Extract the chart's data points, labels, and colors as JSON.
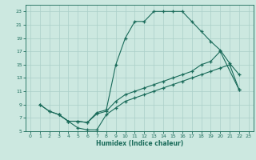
{
  "xlabel": "Humidex (Indice chaleur)",
  "bg_color": "#cce8e0",
  "grid_color": "#aacfc8",
  "line_color": "#1a6b5a",
  "xlim": [
    -0.5,
    23.5
  ],
  "ylim": [
    5,
    24
  ],
  "xticks": [
    0,
    1,
    2,
    3,
    4,
    5,
    6,
    7,
    8,
    9,
    10,
    11,
    12,
    13,
    14,
    15,
    16,
    17,
    18,
    19,
    20,
    21,
    22,
    23
  ],
  "yticks": [
    5,
    7,
    9,
    11,
    13,
    15,
    17,
    19,
    21,
    23
  ],
  "line1_x": [
    1,
    2,
    3,
    4,
    5,
    6,
    7,
    8,
    9,
    10,
    11,
    12,
    13,
    14,
    15,
    16,
    17,
    18,
    19,
    20,
    21,
    22
  ],
  "line1_y": [
    9,
    8,
    7.5,
    6.5,
    6.5,
    6.3,
    7.8,
    8.2,
    15,
    19,
    21.5,
    21.5,
    23,
    23,
    23,
    23,
    21.5,
    20,
    18.5,
    17.2,
    15.2,
    13.5
  ],
  "line2_x": [
    1,
    2,
    3,
    4,
    5,
    6,
    7,
    8,
    9,
    10,
    11,
    12,
    13,
    14,
    15,
    16,
    17,
    18,
    19,
    20,
    22
  ],
  "line2_y": [
    9,
    8,
    7.5,
    6.5,
    6.5,
    6.3,
    7.6,
    8.0,
    9.5,
    10.5,
    11,
    11.5,
    12,
    12.5,
    13,
    13.5,
    14,
    15,
    15.5,
    17,
    11.2
  ],
  "line3_x": [
    3,
    4,
    5,
    6,
    7,
    8,
    9,
    10,
    11,
    12,
    13,
    14,
    15,
    16,
    17,
    18,
    19,
    20,
    21,
    22
  ],
  "line3_y": [
    7.5,
    6.5,
    5.5,
    5.2,
    5.2,
    7.5,
    8.5,
    9.5,
    10,
    10.5,
    11,
    11.5,
    12,
    12.5,
    13,
    13.5,
    14,
    14.5,
    15,
    11.2
  ]
}
